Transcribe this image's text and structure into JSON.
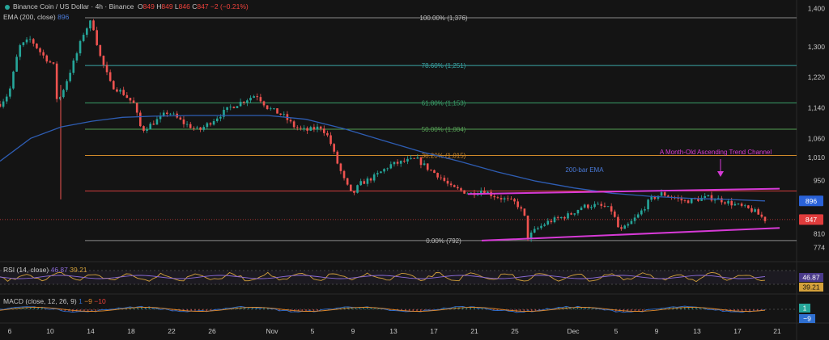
{
  "header": {
    "symbol": "Binance Coin / US Dollar · 4h · Binance",
    "o_label": "O",
    "o_value": "849",
    "h_label": "H",
    "h_value": "849",
    "l_label": "L",
    "l_value": "846",
    "c_label": "C",
    "c_value": "847",
    "change": "−2 (−0.21%)",
    "ema_label": "EMA (200, close)",
    "ema_value": "896"
  },
  "rsi_header": {
    "label": "RSI (14, close)",
    "v1": "46.87",
    "v2": "39.21"
  },
  "macd_header": {
    "label": "MACD (close, 12, 26, 9)",
    "v1": "1",
    "v2": "−9",
    "v3": "−10"
  },
  "colors": {
    "background": "#141414",
    "up": "#26a69a",
    "down": "#ef5350",
    "ema": "#2e5db3",
    "channel": "#d63ad6",
    "rsi": "#d4a13b",
    "rsi_ma": "#8c6bd8",
    "macd": "#2f6fd0",
    "signal": "#e08a2c"
  },
  "chart_data": {
    "type": "candlestick",
    "x_ticks": [
      "6",
      "10",
      "14",
      "18",
      "22",
      "26",
      "Nov",
      "5",
      "9",
      "13",
      "17",
      "21",
      "25",
      "Dec",
      "5",
      "9",
      "13",
      "17",
      "21"
    ],
    "y_ticks": [
      1400,
      1300,
      1220,
      1140,
      1060,
      1010,
      950,
      810,
      774
    ],
    "ylim": [
      760,
      1410
    ],
    "fib_levels": [
      {
        "label": "100.00% (1,376)",
        "price": 1376,
        "color": "#8a8a8a"
      },
      {
        "label": "78.60% (1,251)",
        "price": 1251,
        "color": "#3aa6a6"
      },
      {
        "label": "61.80% (1,153)",
        "price": 1153,
        "color": "#3aa06a"
      },
      {
        "label": "50.00% (1,084)",
        "price": 1084,
        "color": "#55a055"
      },
      {
        "label": "38.20% (1,015)",
        "price": 1015,
        "color": "#d08a2a"
      },
      {
        "label": "",
        "price": 922,
        "color": "#d03c3c"
      },
      {
        "label": "0.00% (792)",
        "price": 792,
        "color": "#8a8a8a"
      }
    ],
    "price_tags": [
      {
        "value": "896",
        "price": 896,
        "bg": "#2a62d8"
      },
      {
        "value": "847",
        "price": 847,
        "bg": "#e03c3c"
      }
    ],
    "ema_label": "200-bar EMA",
    "channel_label": "A Month-Old Ascending Trend Channel",
    "channel_lines": [
      {
        "from": [
          0.0,
          914
        ],
        "to": [
          1.0,
          928
        ]
      },
      {
        "from": [
          0.0,
          792
        ],
        "to": [
          1.0,
          825
        ]
      }
    ],
    "close_path": [
      [
        0,
        1150
      ],
      [
        0.012,
        1180
      ],
      [
        0.025,
        1300
      ],
      [
        0.04,
        1320
      ],
      [
        0.055,
        1280
      ],
      [
        0.07,
        1250
      ],
      [
        0.075,
        1150
      ],
      [
        0.085,
        1200
      ],
      [
        0.1,
        1280
      ],
      [
        0.11,
        1340
      ],
      [
        0.12,
        1370
      ],
      [
        0.13,
        1280
      ],
      [
        0.145,
        1200
      ],
      [
        0.16,
        1180
      ],
      [
        0.175,
        1150
      ],
      [
        0.185,
        1080
      ],
      [
        0.2,
        1100
      ],
      [
        0.22,
        1130
      ],
      [
        0.24,
        1100
      ],
      [
        0.26,
        1080
      ],
      [
        0.28,
        1110
      ],
      [
        0.3,
        1140
      ],
      [
        0.32,
        1160
      ],
      [
        0.335,
        1175
      ],
      [
        0.35,
        1140
      ],
      [
        0.37,
        1120
      ],
      [
        0.385,
        1090
      ],
      [
        0.4,
        1080
      ],
      [
        0.42,
        1090
      ],
      [
        0.43,
        1060
      ],
      [
        0.44,
        1000
      ],
      [
        0.45,
        950
      ],
      [
        0.46,
        910
      ],
      [
        0.47,
        940
      ],
      [
        0.49,
        960
      ],
      [
        0.51,
        990
      ],
      [
        0.53,
        1000
      ],
      [
        0.545,
        1005
      ],
      [
        0.56,
        980
      ],
      [
        0.575,
        960
      ],
      [
        0.59,
        930
      ],
      [
        0.6,
        925
      ],
      [
        0.615,
        915
      ],
      [
        0.63,
        925
      ],
      [
        0.645,
        910
      ],
      [
        0.66,
        900
      ],
      [
        0.675,
        890
      ],
      [
        0.685,
        860
      ],
      [
        0.69,
        800
      ],
      [
        0.7,
        820
      ],
      [
        0.715,
        840
      ],
      [
        0.73,
        850
      ],
      [
        0.745,
        860
      ],
      [
        0.76,
        880
      ],
      [
        0.775,
        885
      ],
      [
        0.79,
        880
      ],
      [
        0.8,
        870
      ],
      [
        0.81,
        815
      ],
      [
        0.82,
        830
      ],
      [
        0.835,
        860
      ],
      [
        0.85,
        900
      ],
      [
        0.865,
        915
      ],
      [
        0.88,
        905
      ],
      [
        0.895,
        895
      ],
      [
        0.91,
        900
      ],
      [
        0.925,
        905
      ],
      [
        0.94,
        900
      ],
      [
        0.955,
        890
      ],
      [
        0.97,
        880
      ],
      [
        0.985,
        870
      ],
      [
        1.0,
        847
      ]
    ],
    "ema_path": [
      [
        0,
        1000
      ],
      [
        0.04,
        1060
      ],
      [
        0.08,
        1090
      ],
      [
        0.12,
        1105
      ],
      [
        0.16,
        1115
      ],
      [
        0.2,
        1118
      ],
      [
        0.25,
        1120
      ],
      [
        0.3,
        1120
      ],
      [
        0.35,
        1120
      ],
      [
        0.4,
        1110
      ],
      [
        0.45,
        1085
      ],
      [
        0.5,
        1055
      ],
      [
        0.55,
        1025
      ],
      [
        0.6,
        1000
      ],
      [
        0.65,
        972
      ],
      [
        0.7,
        948
      ],
      [
        0.75,
        930
      ],
      [
        0.8,
        916
      ],
      [
        0.85,
        908
      ],
      [
        0.9,
        903
      ],
      [
        0.95,
        900
      ],
      [
        1.0,
        896
      ]
    ]
  }
}
